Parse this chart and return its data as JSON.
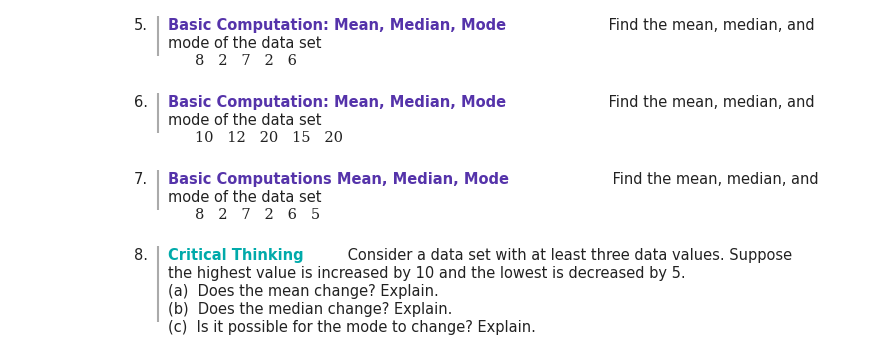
{
  "background_color": "#ffffff",
  "text_color": "#222222",
  "items": [
    {
      "number": "5.",
      "bold_text": "Basic Computation: Mean, Median, Mode",
      "bold_color": "#5533aa",
      "regular_text": " Find the mean, median, and",
      "line2": "mode of the data set",
      "line3": "8   2   7   2   6",
      "extra_lines": [],
      "is_data_line3": true
    },
    {
      "number": "6.",
      "bold_text": "Basic Computation: Mean, Median, Mode",
      "bold_color": "#5533aa",
      "regular_text": " Find the mean, median, and",
      "line2": "mode of the data set",
      "line3": "10   12   20   15   20",
      "extra_lines": [],
      "is_data_line3": true
    },
    {
      "number": "7.",
      "bold_text": "Basic Computations Mean, Median, Mode",
      "bold_color": "#5533aa",
      "regular_text": " Find the mean, median, and",
      "line2": "mode of the data set",
      "line3": "8   2   7   2   6   5",
      "extra_lines": [],
      "is_data_line3": true
    },
    {
      "number": "8.",
      "bold_text": "Critical Thinking",
      "bold_color": "#00aaaa",
      "regular_text": " Consider a data set with at least three data values. Suppose",
      "line2": "the highest value is increased by 10 and the lowest is decreased by 5.",
      "line3": "(a)  Does the mean change? Explain.",
      "extra_lines": [
        "(b)  Does the median change? Explain.",
        "(c)  Is it possible for the mode to change? Explain."
      ],
      "is_data_line3": false
    }
  ],
  "font_size": 10.5,
  "bar_color": "#aaaaaa",
  "number_color": "#222222"
}
